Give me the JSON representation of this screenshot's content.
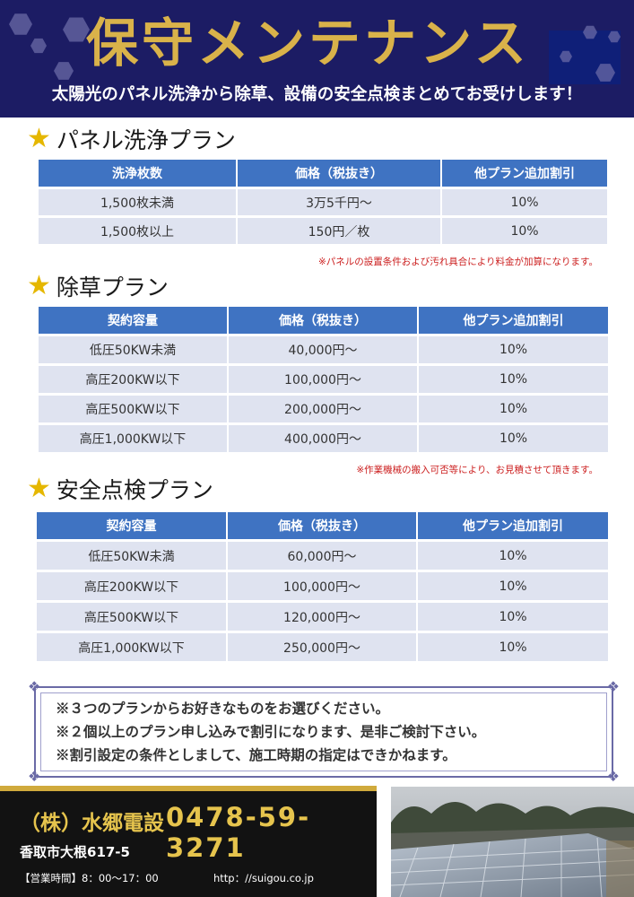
{
  "header": {
    "title": "保守メンテナンス",
    "subtitle": "太陽光のパネル洗浄から除草、設備の安全点検まとめてお受けします！"
  },
  "sections": [
    {
      "heading": "パネル洗浄プラン",
      "columns": [
        "洗浄枚数",
        "価格（税抜き）",
        "他プラン追加割引"
      ],
      "rows": [
        [
          "1,500枚未満",
          "3万5千円～",
          "10%"
        ],
        [
          "1,500枚以上",
          "150円／枚",
          "10%"
        ]
      ],
      "note": "※パネルの設置条件および汚れ具合により料金が加算になります。"
    },
    {
      "heading": "除草プラン",
      "columns": [
        "契約容量",
        "価格（税抜き）",
        "他プラン追加割引"
      ],
      "rows": [
        [
          "低圧50KW未満",
          "40,000円～",
          "10%"
        ],
        [
          "高圧200KW以下",
          "100,000円～",
          "10%"
        ],
        [
          "高圧500KW以下",
          "200,000円～",
          "10%"
        ],
        [
          "高圧1,000KW以下",
          "400,000円～",
          "10%"
        ]
      ],
      "note": "※作業機械の搬入可否等により、お見積させて頂きます。"
    },
    {
      "heading": "安全点検プラン",
      "columns": [
        "契約容量",
        "価格（税抜き）",
        "他プラン追加割引"
      ],
      "rows": [
        [
          "低圧50KW未満",
          "60,000円～",
          "10%"
        ],
        [
          "高圧200KW以下",
          "100,000円～",
          "10%"
        ],
        [
          "高圧500KW以下",
          "120,000円～",
          "10%"
        ],
        [
          "高圧1,000KW以下",
          "250,000円～",
          "10%"
        ]
      ]
    }
  ],
  "notice": {
    "lines": [
      "※３つのプランからお好きなものをお選びください。",
      "※２個以上のプラン申し込みで割引になります、是非ご検討下さい。",
      "※割引設定の条件としまして、施工時期の指定はできかねます。"
    ]
  },
  "footer": {
    "company": "（株）水郷電設",
    "phone": "0478-59-3271",
    "address": "香取市大根617-5",
    "hours": "【営業時間】8：00～17：00",
    "url": "http：//suigou.co.jp"
  },
  "colors": {
    "header_bg": "#1c1c64",
    "title_gold": "#d9b24a",
    "table_header": "#3f73c2",
    "table_row": "#dfe3f0",
    "star": "#e5b700",
    "note_red": "#cc2020"
  },
  "icons": {
    "section_marker": "star-icon",
    "photo": "solar-panel-photo"
  }
}
